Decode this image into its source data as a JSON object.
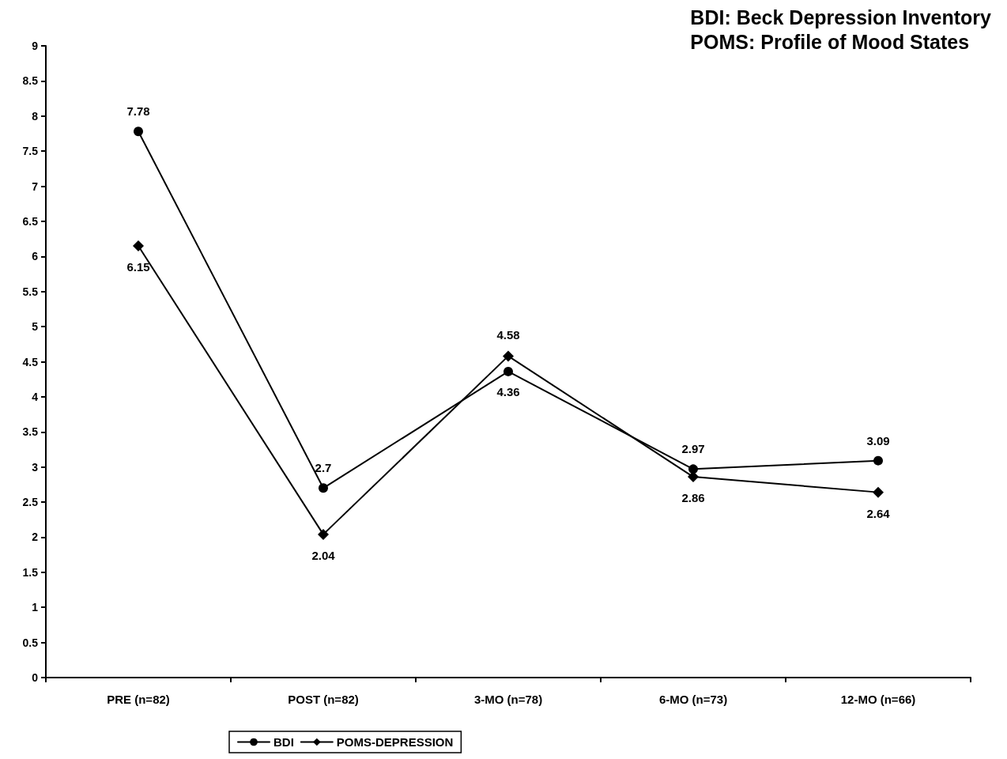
{
  "chart_data": {
    "type": "line",
    "categories": [
      "PRE (n=82)",
      "POST (n=82)",
      "3-MO (n=78)",
      "6-MO (n=73)",
      "12-MO (n=66)"
    ],
    "series": [
      {
        "name": "BDI",
        "color": "#000000",
        "marker": "circle",
        "values": [
          7.78,
          2.7,
          4.36,
          2.97,
          3.09
        ]
      },
      {
        "name": "POMS-DEPRESSION",
        "color": "#000000",
        "marker": "diamond",
        "values": [
          6.15,
          2.04,
          4.58,
          2.86,
          2.64
        ]
      }
    ],
    "ylim": [
      0,
      9
    ],
    "yticks": [
      0,
      0.5,
      1,
      1.5,
      2,
      2.5,
      3,
      3.5,
      4,
      4.5,
      5,
      5.5,
      6,
      6.5,
      7,
      7.5,
      8,
      8.5,
      9
    ],
    "data_labels": true,
    "grid": false,
    "legend": "bottom",
    "line_style": "solid",
    "annotations": [
      "BDI: Beck Depression Inventory",
      "POMS: Profile of Mood States"
    ]
  }
}
